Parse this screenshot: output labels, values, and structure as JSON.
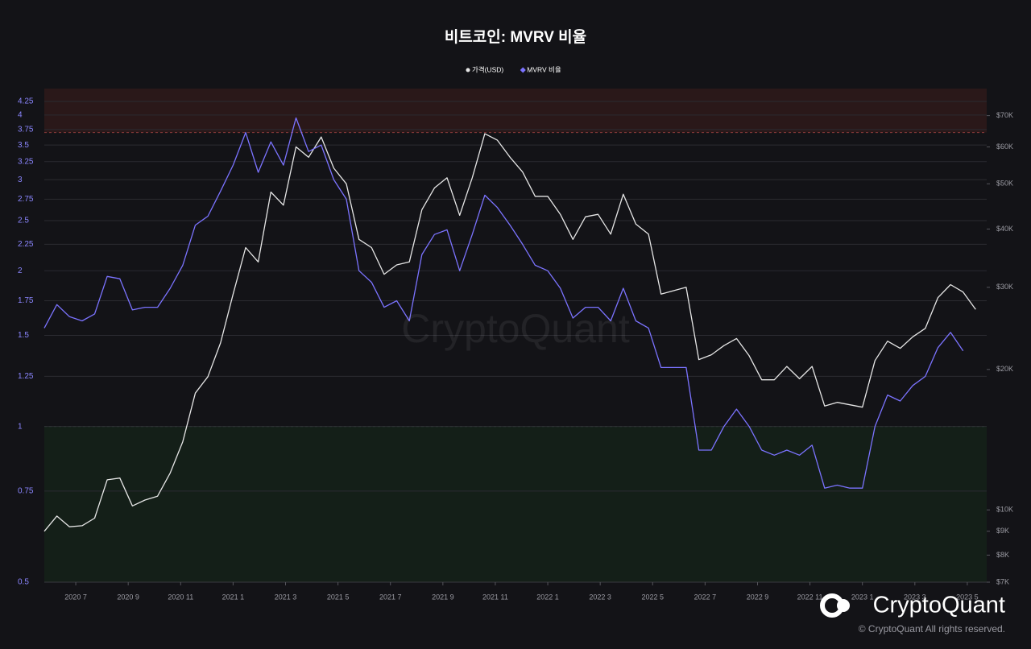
{
  "chart_data": {
    "type": "line",
    "title": "비트코인: MVRV 비율",
    "watermark": "CryptoQuant",
    "brand": "CryptoQuant",
    "copyright": "© CryptoQuant All rights reserved.",
    "x": [
      2020.4,
      2020.44,
      2020.48,
      2020.52,
      2020.56,
      2020.6,
      2020.64,
      2020.68,
      2020.72,
      2020.76,
      2020.8,
      2020.84,
      2020.88,
      2020.92,
      2020.96,
      2021.0,
      2021.04,
      2021.08,
      2021.12,
      2021.16,
      2021.2,
      2021.24,
      2021.28,
      2021.32,
      2021.36,
      2021.4,
      2021.44,
      2021.48,
      2021.52,
      2021.56,
      2021.6,
      2021.64,
      2021.68,
      2021.72,
      2021.76,
      2021.8,
      2021.84,
      2021.88,
      2021.92,
      2021.96,
      2022.0,
      2022.04,
      2022.08,
      2022.12,
      2022.16,
      2022.2,
      2022.24,
      2022.28,
      2022.32,
      2022.36,
      2022.4,
      2022.44,
      2022.48,
      2022.52,
      2022.56,
      2022.6,
      2022.64,
      2022.68,
      2022.72,
      2022.76,
      2022.8,
      2022.84,
      2022.88,
      2022.92,
      2022.96,
      2023.0,
      2023.04,
      2023.08,
      2023.12,
      2023.16,
      2023.2,
      2023.24,
      2023.28,
      2023.32,
      2023.36
    ],
    "series": [
      {
        "name": "가격(USD)",
        "color": "#e6e6e6",
        "axis": "y2",
        "marker": "circle",
        "values": [
          9000,
          9700,
          9200,
          9250,
          9600,
          11600,
          11700,
          10200,
          10500,
          10700,
          12000,
          14000,
          17800,
          19300,
          22800,
          29000,
          36500,
          34000,
          48000,
          45000,
          60000,
          57000,
          63000,
          54000,
          50000,
          38000,
          36500,
          32000,
          33500,
          34000,
          44000,
          49000,
          51500,
          42800,
          51500,
          64000,
          62000,
          57000,
          53000,
          47000,
          47000,
          43000,
          38000,
          42500,
          43000,
          39000,
          47500,
          41000,
          39000,
          29000,
          29500,
          30000,
          21000,
          21500,
          22500,
          23300,
          21400,
          19000,
          19000,
          20300,
          19100,
          20300,
          16700,
          17000,
          16800,
          16600,
          20900,
          23000,
          22200,
          23500,
          24500,
          28500,
          30400,
          29300,
          26900
        ]
      },
      {
        "name": "MVRV 비율",
        "color": "#7b73ff",
        "axis": "y",
        "marker": "diamond",
        "values": [
          1.55,
          1.72,
          1.63,
          1.6,
          1.65,
          1.95,
          1.93,
          1.68,
          1.7,
          1.7,
          1.85,
          2.05,
          2.45,
          2.55,
          2.85,
          3.2,
          3.7,
          3.1,
          3.55,
          3.2,
          3.95,
          3.4,
          3.5,
          3.0,
          2.75,
          2.0,
          1.9,
          1.7,
          1.75,
          1.6,
          2.15,
          2.35,
          2.4,
          2.0,
          2.35,
          2.8,
          2.65,
          2.45,
          2.25,
          2.05,
          2.0,
          1.85,
          1.62,
          1.7,
          1.7,
          1.6,
          1.85,
          1.6,
          1.55,
          1.3,
          1.3,
          1.3,
          0.9,
          0.9,
          1.0,
          1.08,
          1.0,
          0.9,
          0.88,
          0.9,
          0.88,
          0.92,
          0.76,
          0.77,
          0.76,
          0.76,
          1.0,
          1.15,
          1.12,
          1.2,
          1.25,
          1.42,
          1.52,
          1.4,
          null
        ]
      }
    ],
    "xlim": [
      2020.4,
      2023.395
    ],
    "xticks": [
      {
        "value": 2020.5,
        "label": "2020 7"
      },
      {
        "value": 2020.6667,
        "label": "2020 9"
      },
      {
        "value": 2020.8333,
        "label": "2020 11"
      },
      {
        "value": 2021.0,
        "label": "2021 1"
      },
      {
        "value": 2021.1667,
        "label": "2021 3"
      },
      {
        "value": 2021.3333,
        "label": "2021 5"
      },
      {
        "value": 2021.5,
        "label": "2021 7"
      },
      {
        "value": 2021.6667,
        "label": "2021 9"
      },
      {
        "value": 2021.8333,
        "label": "2021 11"
      },
      {
        "value": 2022.0,
        "label": "2022 1"
      },
      {
        "value": 2022.1667,
        "label": "2022 3"
      },
      {
        "value": 2022.3333,
        "label": "2022 5"
      },
      {
        "value": 2022.5,
        "label": "2022 7"
      },
      {
        "value": 2022.6667,
        "label": "2022 9"
      },
      {
        "value": 2022.8333,
        "label": "2022 11"
      },
      {
        "value": 2023.0,
        "label": "2023 1"
      },
      {
        "value": 2023.1667,
        "label": "2023 3"
      },
      {
        "value": 2023.3333,
        "label": "2023 5"
      }
    ],
    "ylim": [
      0.5,
      4.5
    ],
    "ylog": true,
    "yticks": [
      0.5,
      0.75,
      1,
      1.25,
      1.5,
      1.75,
      2,
      2.25,
      2.5,
      2.75,
      3,
      3.25,
      3.5,
      3.75,
      4,
      4.25
    ],
    "y2lim": [
      7000,
      80000
    ],
    "y2log": true,
    "y2ticks": [
      {
        "value": 7000,
        "label": "$7K"
      },
      {
        "value": 8000,
        "label": "$8K"
      },
      {
        "value": 9000,
        "label": "$9K"
      },
      {
        "value": 10000,
        "label": "$10K"
      },
      {
        "value": 20000,
        "label": "$20K"
      },
      {
        "value": 30000,
        "label": "$30K"
      },
      {
        "value": 40000,
        "label": "$40K"
      },
      {
        "value": 50000,
        "label": "$50K"
      },
      {
        "value": 60000,
        "label": "$60K"
      },
      {
        "value": 70000,
        "label": "$70K"
      }
    ],
    "grid": true,
    "bands": [
      {
        "from": 3.7,
        "to": 4.5,
        "color": "#2a1819",
        "line": "#8a3a3a"
      },
      {
        "from": 0.5,
        "to": 1,
        "color": "#141f18",
        "line": "#3c6a48"
      }
    ]
  }
}
